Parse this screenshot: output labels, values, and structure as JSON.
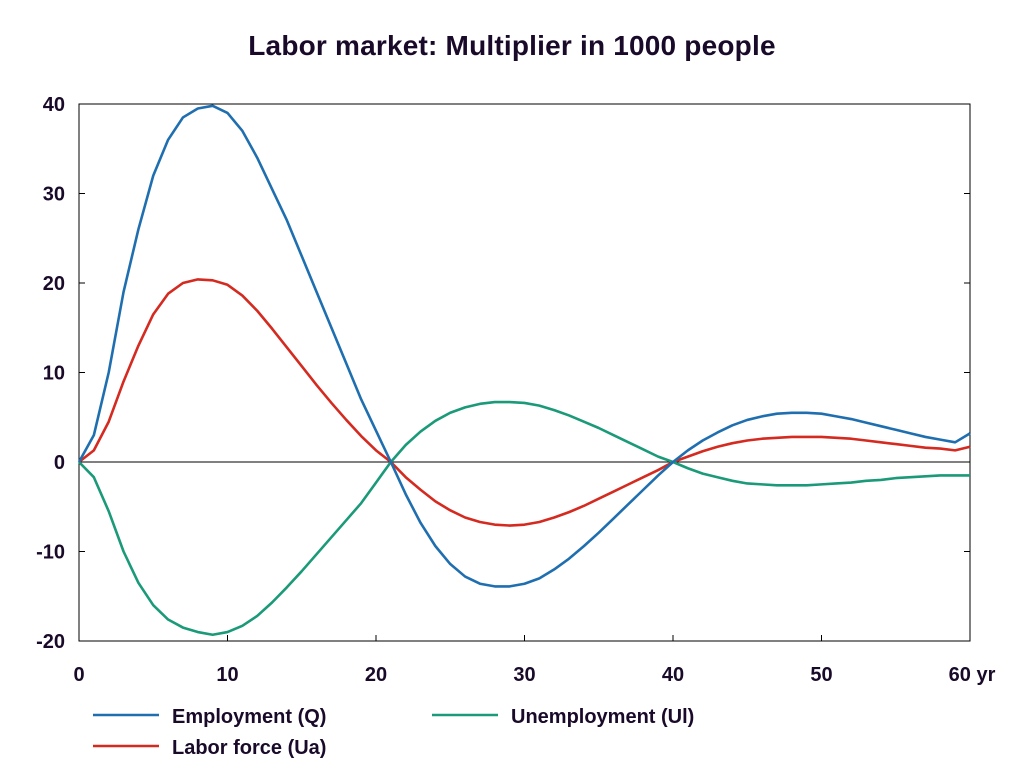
{
  "chart_data": {
    "type": "line",
    "title": "Labor market: Multiplier in 1000 people",
    "xlabel": "",
    "ylabel": "",
    "x_unit": "yr",
    "xlim": [
      0,
      60
    ],
    "ylim": [
      -20,
      40
    ],
    "xticks": [
      0,
      10,
      20,
      30,
      40,
      50,
      60
    ],
    "xtick_labels": [
      "0",
      "10",
      "20",
      "30",
      "40",
      "50",
      "60 yr"
    ],
    "yticks": [
      40,
      30,
      20,
      10,
      0,
      -10,
      -20
    ],
    "ytick_labels": [
      "40",
      "30",
      "20",
      "10",
      "0",
      "-10",
      "-20"
    ],
    "grid": false,
    "legend_position": "bottom",
    "x": [
      0,
      1,
      2,
      3,
      4,
      5,
      6,
      7,
      8,
      9,
      10,
      11,
      12,
      13,
      14,
      15,
      16,
      17,
      18,
      19,
      20,
      21,
      22,
      23,
      24,
      25,
      26,
      27,
      28,
      29,
      30,
      31,
      32,
      33,
      34,
      35,
      36,
      37,
      38,
      39,
      40,
      41,
      42,
      43,
      44,
      45,
      46,
      47,
      48,
      49,
      50,
      51,
      52,
      53,
      54,
      55,
      56,
      57,
      58,
      59,
      60
    ],
    "series": [
      {
        "name": "Employment (Q)",
        "color": "#1f6fb0",
        "values": [
          0,
          3,
          10,
          19,
          26,
          32,
          36,
          38.5,
          39.5,
          39.8,
          39,
          37,
          34,
          30.5,
          27,
          23,
          19,
          15,
          11,
          7,
          3.5,
          0,
          -3.6,
          -6.8,
          -9.4,
          -11.4,
          -12.8,
          -13.6,
          -13.9,
          -13.9,
          -13.6,
          -13,
          -12,
          -10.8,
          -9.4,
          -7.9,
          -6.3,
          -4.7,
          -3.1,
          -1.5,
          0,
          1.3,
          2.4,
          3.3,
          4.1,
          4.7,
          5.1,
          5.4,
          5.5,
          5.5,
          5.4,
          5.1,
          4.8,
          4.4,
          4,
          3.6,
          3.2,
          2.8,
          2.5,
          2.2,
          3.2
        ]
      },
      {
        "name": "Labor force (Ua)",
        "color": "#d42a20",
        "values": [
          0,
          1.3,
          4.5,
          9,
          13,
          16.5,
          18.8,
          20,
          20.4,
          20.3,
          19.8,
          18.6,
          16.9,
          14.9,
          12.8,
          10.7,
          8.6,
          6.6,
          4.7,
          2.9,
          1.3,
          0,
          -1.7,
          -3.1,
          -4.4,
          -5.4,
          -6.2,
          -6.7,
          -7,
          -7.1,
          -7,
          -6.7,
          -6.2,
          -5.6,
          -4.9,
          -4.1,
          -3.3,
          -2.5,
          -1.7,
          -0.9,
          0,
          0.6,
          1.2,
          1.7,
          2.1,
          2.4,
          2.6,
          2.7,
          2.8,
          2.8,
          2.8,
          2.7,
          2.6,
          2.4,
          2.2,
          2,
          1.8,
          1.6,
          1.5,
          1.3,
          1.7
        ]
      },
      {
        "name": "Unemployment (Ul)",
        "color": "#1a9a78",
        "values": [
          0,
          -1.7,
          -5.5,
          -10,
          -13.5,
          -16,
          -17.6,
          -18.5,
          -19,
          -19.3,
          -19,
          -18.3,
          -17.2,
          -15.7,
          -14,
          -12.2,
          -10.3,
          -8.4,
          -6.5,
          -4.6,
          -2.3,
          0,
          1.9,
          3.4,
          4.6,
          5.5,
          6.1,
          6.5,
          6.7,
          6.7,
          6.6,
          6.3,
          5.8,
          5.2,
          4.5,
          3.8,
          3,
          2.2,
          1.4,
          0.6,
          0,
          -0.7,
          -1.3,
          -1.7,
          -2.1,
          -2.4,
          -2.5,
          -2.6,
          -2.6,
          -2.6,
          -2.5,
          -2.4,
          -2.3,
          -2.1,
          -2,
          -1.8,
          -1.7,
          -1.6,
          -1.5,
          -1.5,
          -1.5
        ]
      }
    ]
  }
}
